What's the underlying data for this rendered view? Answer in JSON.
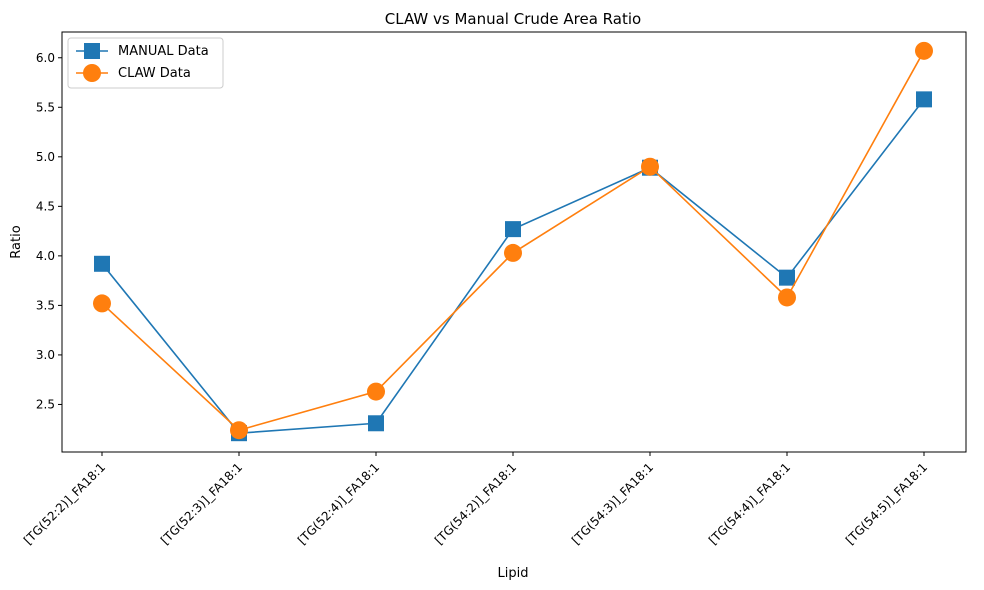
{
  "chart_data": {
    "type": "line",
    "title": "CLAW vs Manual Crude Area Ratio",
    "xlabel": "Lipid",
    "ylabel": "Ratio",
    "categories": [
      "[TG(52:2)]_FA18:1",
      "[TG(52:3)]_FA18:1",
      "[TG(52:4)]_FA18:1",
      "[TG(54:2)]_FA18:1",
      "[TG(54:3)]_FA18:1",
      "[TG(54:4)]_FA18:1",
      "[TG(54:5)]_FA18:1"
    ],
    "ylim": [
      2.02,
      6.26
    ],
    "yticks": [
      "2.5",
      "3.0",
      "3.5",
      "4.0",
      "4.5",
      "5.0",
      "5.5",
      "6.0"
    ],
    "grid": false,
    "legend_position": "top-left",
    "series": [
      {
        "name": "MANUAL Data",
        "marker": "square",
        "color": "#1f77b4",
        "values": [
          3.92,
          2.21,
          2.31,
          4.27,
          4.89,
          3.78,
          5.58
        ]
      },
      {
        "name": "CLAW Data",
        "marker": "circle",
        "color": "#ff7f0e",
        "values": [
          3.52,
          2.24,
          2.63,
          4.03,
          4.9,
          3.58,
          6.07
        ]
      }
    ]
  }
}
